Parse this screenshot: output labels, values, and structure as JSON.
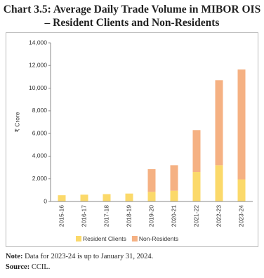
{
  "chart_data": {
    "type": "stacked-bar",
    "title": "Chart 3.5: Average Daily Trade Volume in MIBOR OIS – Resident Clients and Non-Residents",
    "y_label": "₹ Crore",
    "categories": [
      "2015-16",
      "2016-17",
      "2017-18",
      "2018-19",
      "2019-20",
      "2020-21",
      "2021-22",
      "2022-23",
      "2023-24"
    ],
    "series": [
      {
        "name": "Resident Clients",
        "color": "#fbd96a",
        "values": [
          550,
          600,
          650,
          700,
          850,
          950,
          2600,
          3200,
          1950
        ]
      },
      {
        "name": "Non-Residents",
        "color": "#f5b183",
        "values": [
          0,
          0,
          0,
          0,
          2000,
          2250,
          3700,
          7500,
          9700
        ]
      }
    ],
    "ylim": [
      0,
      14000
    ],
    "yticks": [
      0,
      {
        "value": 2000,
        "label": "2,000"
      },
      {
        "value": 4000,
        "label": "4,000"
      },
      {
        "value": 6000,
        "label": "6,000"
      },
      {
        "value": 8000,
        "label": "8,000"
      },
      {
        "value": 10000,
        "label": "10,000"
      },
      {
        "value": 12000,
        "label": "12,000"
      },
      {
        "value": 14000,
        "label": "14,000"
      }
    ],
    "legend": "bottom"
  },
  "notes": {
    "note_label": "Note:",
    "note": "Data for 2023-24 is up to January 31, 2024.",
    "source_label": "Source:",
    "source": "CCIL."
  }
}
